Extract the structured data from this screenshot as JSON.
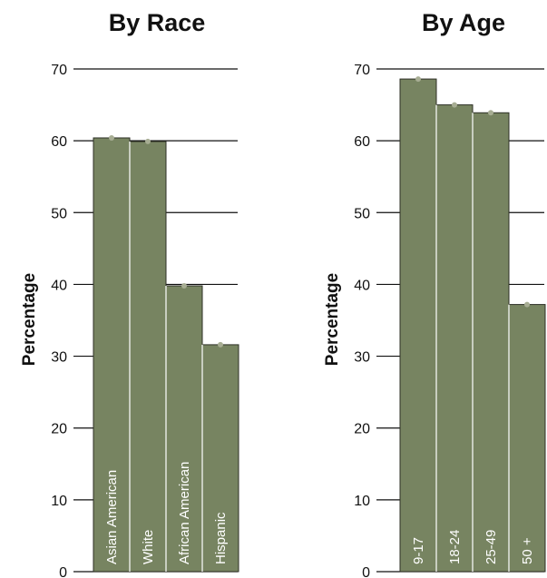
{
  "chart_data": [
    {
      "type": "bar",
      "title": "By Race",
      "xlabel": "",
      "ylabel": "Percentage",
      "ylim": [
        0,
        70
      ],
      "yticks": [
        0,
        10,
        20,
        30,
        40,
        50,
        60,
        70
      ],
      "categories": [
        "Asian American",
        "White",
        "African American",
        "Hispanic"
      ],
      "values": [
        60.4,
        59.9,
        39.8,
        31.6
      ],
      "grid": true,
      "colors": {
        "bar": "#778461",
        "marker": "#a7ad93",
        "axis": "#111111"
      }
    },
    {
      "type": "bar",
      "title": "By Age",
      "xlabel": "",
      "ylabel": "Percentage",
      "ylim": [
        0,
        70
      ],
      "yticks": [
        0,
        10,
        20,
        30,
        40,
        50,
        60,
        70
      ],
      "categories": [
        "9-17",
        "18-24",
        "25-49",
        "50 +"
      ],
      "values": [
        68.6,
        65.0,
        63.9,
        37.2
      ],
      "grid": true,
      "colors": {
        "bar": "#778461",
        "marker": "#a7ad93",
        "axis": "#111111"
      }
    }
  ]
}
